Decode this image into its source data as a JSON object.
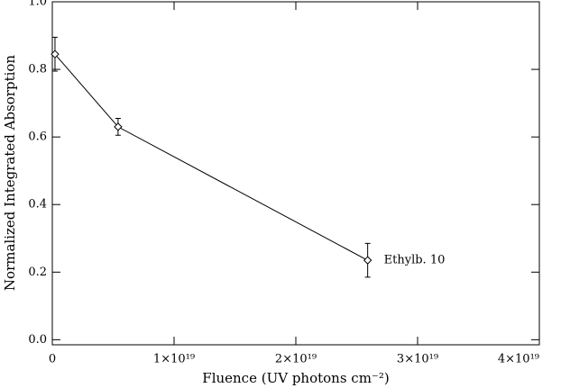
{
  "chart_data": {
    "type": "line",
    "xlabel": "Fluence (UV photons cm⁻²)",
    "ylabel": "Normalized Integrated Absorption",
    "series": [
      {
        "name": "Ethylb. 10",
        "color": "#000000",
        "x": [
          2.2e+17,
          5.4e+18,
          2.59e+19
        ],
        "values": [
          0.845,
          0.63,
          0.235
        ],
        "errors": [
          0.05,
          0.025,
          0.05
        ]
      }
    ],
    "xlim": [
      0,
      4e+19
    ],
    "ylim": [
      -0.015,
      1.0
    ],
    "xticks": [
      0,
      {
        "value": 1e+19,
        "label": "1×10¹⁹"
      },
      {
        "value": 2e+19,
        "label": "2×10¹⁹"
      },
      {
        "value": 3e+19,
        "label": "3×10¹⁹"
      },
      {
        "value": 4e+19,
        "label": "4×10¹⁹"
      }
    ],
    "yticks": [
      {
        "value": 0,
        "label": "0.0"
      },
      0.2,
      0.4,
      0.6,
      0.8,
      {
        "value": 1,
        "label": "1.0"
      }
    ]
  }
}
